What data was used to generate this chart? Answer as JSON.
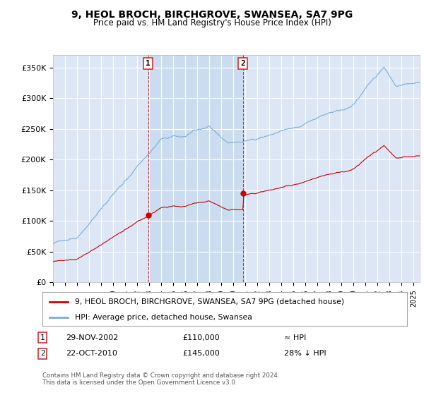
{
  "title": "9, HEOL BROCH, BIRCHGROVE, SWANSEA, SA7 9PG",
  "subtitle": "Price paid vs. HM Land Registry's House Price Index (HPI)",
  "ylim": [
    0,
    370000
  ],
  "yticks": [
    0,
    50000,
    100000,
    150000,
    200000,
    250000,
    300000,
    350000
  ],
  "ytick_labels": [
    "£0",
    "£50K",
    "£100K",
    "£150K",
    "£200K",
    "£250K",
    "£300K",
    "£350K"
  ],
  "background_color": "#ffffff",
  "plot_bg_color": "#dce6f5",
  "grid_color": "#ffffff",
  "shade_color": "#ccdcf0",
  "purchase1": {
    "date_num": 2002.91,
    "price": 110000,
    "label": "1",
    "date_str": "29-NOV-2002",
    "price_str": "£110,000",
    "hpi_str": "≈ HPI"
  },
  "purchase2": {
    "date_num": 2010.8,
    "price": 145000,
    "label": "2",
    "date_str": "22-OCT-2010",
    "price_str": "£145,000",
    "hpi_str": "28% ↓ HPI"
  },
  "legend_property": "9, HEOL BROCH, BIRCHGROVE, SWANSEA, SA7 9PG (detached house)",
  "legend_hpi": "HPI: Average price, detached house, Swansea",
  "property_line_color": "#cc0000",
  "hpi_line_color": "#7aaddc",
  "footer": "Contains HM Land Registry data © Crown copyright and database right 2024.\nThis data is licensed under the Open Government Licence v3.0.",
  "xmin": 1995,
  "xmax": 2025.5
}
